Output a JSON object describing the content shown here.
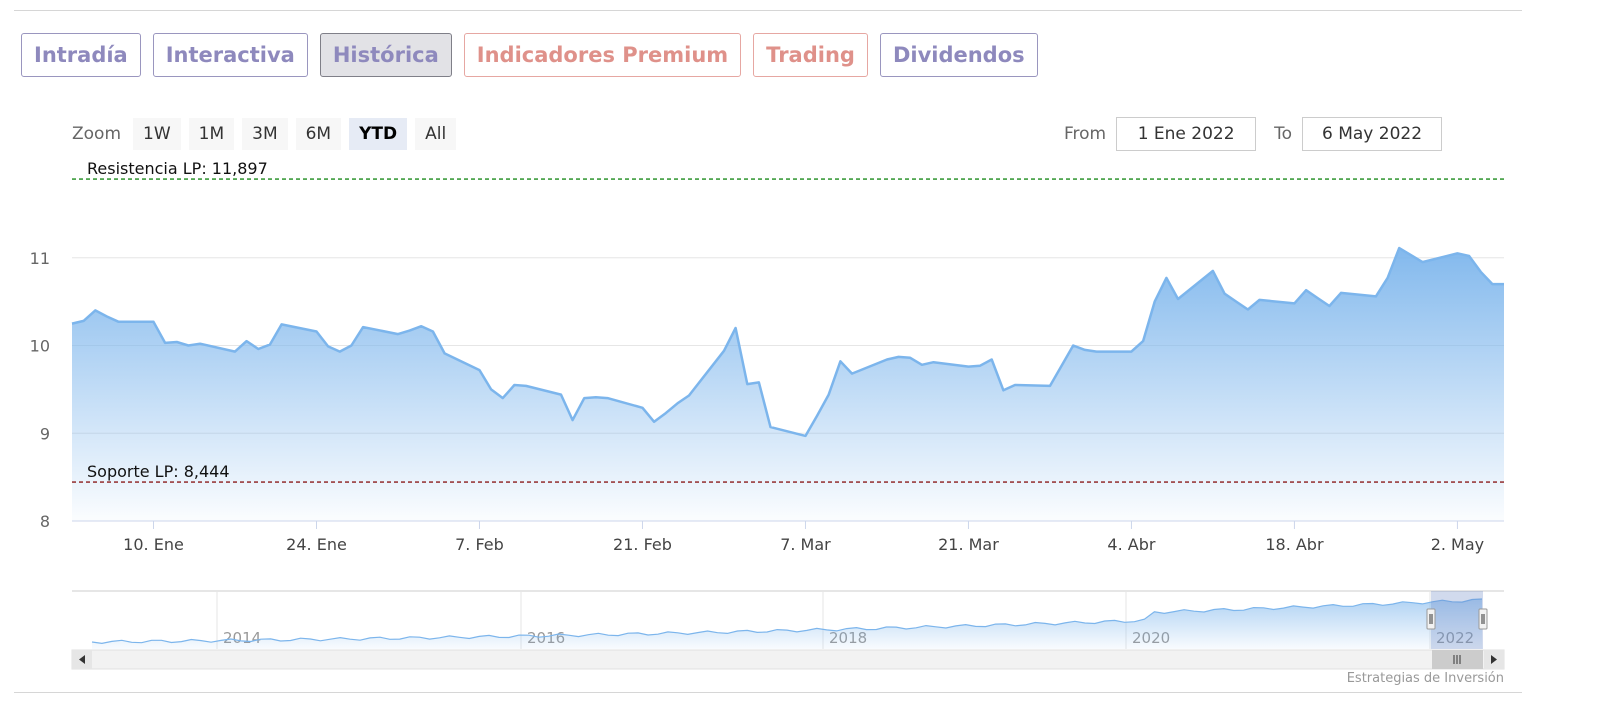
{
  "tabs": [
    {
      "label": "Intradía",
      "style": "normal"
    },
    {
      "label": "Interactiva",
      "style": "normal"
    },
    {
      "label": "Histórica",
      "style": "active"
    },
    {
      "label": "Indicadores Premium",
      "style": "pink"
    },
    {
      "label": "Trading",
      "style": "pink"
    },
    {
      "label": "Dividendos",
      "style": "normal"
    }
  ],
  "zoom": {
    "label": "Zoom",
    "buttons": [
      "1W",
      "1M",
      "3M",
      "6M",
      "YTD",
      "All"
    ],
    "selected": "YTD"
  },
  "range": {
    "from_label": "From",
    "from_value": "1 Ene 2022",
    "to_label": "To",
    "to_value": "6 May 2022"
  },
  "credit": "Estrategias de Inversión",
  "colors": {
    "series_line": "#7cb5ec",
    "resistance": "#1a8a1a",
    "support": "#8b1a1a",
    "tab_purple": "#8e89bd",
    "tab_pink": "#df918a"
  },
  "chart_data": {
    "type": "area",
    "ylim": [
      8,
      12
    ],
    "yticks": [
      8,
      9,
      10,
      11
    ],
    "x_tick_labels": [
      "10. Ene",
      "24. Ene",
      "7. Feb",
      "21. Feb",
      "7. Mar",
      "21. Mar",
      "4. Abr",
      "18. Abr",
      "2. May"
    ],
    "resistance": {
      "label": "Resistencia LP: 11,897",
      "value": 11.897
    },
    "support": {
      "label": "Soporte LP: 8,444",
      "value": 8.444
    },
    "series": [
      {
        "x": [
          "2022-01-03",
          "2022-01-04",
          "2022-01-05",
          "2022-01-06",
          "2022-01-07",
          "2022-01-10",
          "2022-01-11",
          "2022-01-12",
          "2022-01-13",
          "2022-01-14",
          "2022-01-17",
          "2022-01-18",
          "2022-01-19",
          "2022-01-20",
          "2022-01-21",
          "2022-01-24",
          "2022-01-25",
          "2022-01-26",
          "2022-01-27",
          "2022-01-28",
          "2022-01-31",
          "2022-02-01",
          "2022-02-02",
          "2022-02-03",
          "2022-02-04",
          "2022-02-07",
          "2022-02-08",
          "2022-02-09",
          "2022-02-10",
          "2022-02-11",
          "2022-02-14",
          "2022-02-15",
          "2022-02-16",
          "2022-02-17",
          "2022-02-18",
          "2022-02-21",
          "2022-02-22",
          "2022-02-23",
          "2022-02-24",
          "2022-02-25",
          "2022-02-28",
          "2022-03-01",
          "2022-03-02",
          "2022-03-03",
          "2022-03-04",
          "2022-03-07",
          "2022-03-08",
          "2022-03-09",
          "2022-03-10",
          "2022-03-11",
          "2022-03-14",
          "2022-03-15",
          "2022-03-16",
          "2022-03-17",
          "2022-03-18",
          "2022-03-21",
          "2022-03-22",
          "2022-03-23",
          "2022-03-24",
          "2022-03-25",
          "2022-03-28",
          "2022-03-29",
          "2022-03-30",
          "2022-03-31",
          "2022-04-01",
          "2022-04-04",
          "2022-04-05",
          "2022-04-06",
          "2022-04-07",
          "2022-04-08",
          "2022-04-11",
          "2022-04-12",
          "2022-04-13",
          "2022-04-14",
          "2022-04-15",
          "2022-04-18",
          "2022-04-19",
          "2022-04-20",
          "2022-04-21",
          "2022-04-22",
          "2022-04-25",
          "2022-04-26",
          "2022-04-27",
          "2022-04-28",
          "2022-04-29",
          "2022-05-02",
          "2022-05-03",
          "2022-05-04",
          "2022-05-05",
          "2022-05-06"
        ],
        "values": [
          10.25,
          10.28,
          10.4,
          10.33,
          10.27,
          10.27,
          10.03,
          10.04,
          10.0,
          10.02,
          9.93,
          10.05,
          9.96,
          10.01,
          10.24,
          10.16,
          9.99,
          9.93,
          10.0,
          10.21,
          10.13,
          10.17,
          10.22,
          10.16,
          9.91,
          9.72,
          9.5,
          9.4,
          9.55,
          9.54,
          9.44,
          9.15,
          9.4,
          9.41,
          9.4,
          9.29,
          9.13,
          9.23,
          9.34,
          9.43,
          9.94,
          10.2,
          9.56,
          9.58,
          9.07,
          8.97,
          9.2,
          9.44,
          9.82,
          9.68,
          9.84,
          9.87,
          9.86,
          9.78,
          9.81,
          9.76,
          9.77,
          9.84,
          9.49,
          9.55,
          9.54,
          9.77,
          10.0,
          9.95,
          9.93,
          9.93,
          10.05,
          10.5,
          10.77,
          10.53,
          10.85,
          10.59,
          10.5,
          10.41,
          10.52,
          10.48,
          10.63,
          10.54,
          10.45,
          10.6,
          10.56,
          10.77,
          11.11,
          11.03,
          10.95,
          11.05,
          11.02,
          10.84,
          10.7,
          10.7
        ]
      }
    ],
    "navigator": {
      "x_labels": [
        "2014",
        "2016",
        "2018",
        "2020",
        "2022"
      ]
    }
  }
}
